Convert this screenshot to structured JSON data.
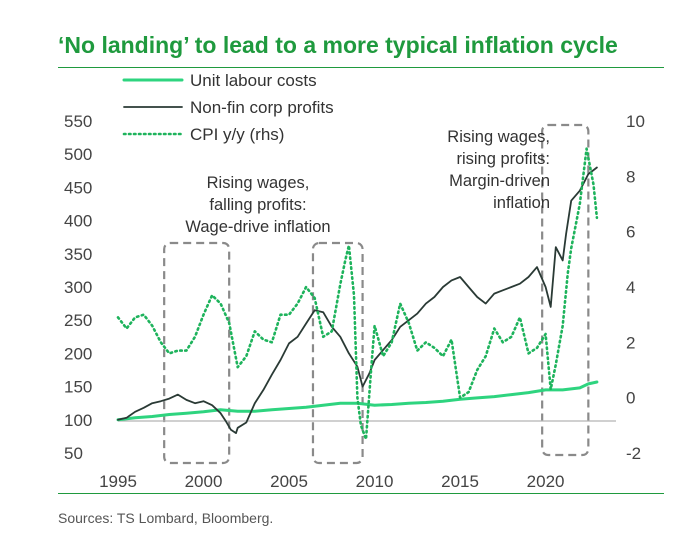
{
  "title": "‘No landing’ to lead to a more typical inflation cycle",
  "source": "Sources: TS Lombard, Bloomberg.",
  "chart_data": {
    "type": "line",
    "x_ticks": [
      "1995",
      "2000",
      "2005",
      "2010",
      "2015",
      "2020"
    ],
    "xlim": [
      1995,
      2024
    ],
    "ylim_left": [
      50,
      550
    ],
    "y_ticks_left": [
      "550",
      "500",
      "450",
      "400",
      "350",
      "300",
      "250",
      "200",
      "150",
      "100",
      "50"
    ],
    "ylim_right": [
      -2,
      10
    ],
    "y_ticks_right": [
      "10",
      "8",
      "6",
      "4",
      "2",
      "0",
      "-2"
    ],
    "legend": [
      {
        "name": "Unit labour costs",
        "color": "#2ed47f",
        "style": "solid"
      },
      {
        "name": "Non-fin corp profits",
        "color": "#2a3a35",
        "style": "solid"
      },
      {
        "name": "CPI y/y (rhs)",
        "color": "#1eb35c",
        "style": "dotted"
      }
    ],
    "annotations": [
      {
        "lines": [
          "Rising wages,",
          "falling profits:",
          "Wage-drive inflation"
        ]
      },
      {
        "lines": [
          "Rising wages,",
          "rising profits:",
          "Margin-driven",
          "inflation"
        ]
      }
    ],
    "highlight_periods": [
      [
        1997.7,
        2001.5
      ],
      [
        2006.4,
        2009.3
      ],
      [
        2019.8,
        2022.5
      ]
    ],
    "series": [
      {
        "name": "Unit labour costs",
        "axis": "left",
        "points": [
          [
            1995,
            100
          ],
          [
            1996,
            103
          ],
          [
            1997,
            105
          ],
          [
            1998,
            108
          ],
          [
            1999,
            110
          ],
          [
            2000,
            112
          ],
          [
            2001,
            115
          ],
          [
            2002,
            113
          ],
          [
            2003,
            113
          ],
          [
            2004,
            115
          ],
          [
            2005,
            117
          ],
          [
            2006,
            119
          ],
          [
            2007,
            122
          ],
          [
            2008,
            125
          ],
          [
            2009,
            125
          ],
          [
            2010,
            122
          ],
          [
            2011,
            123
          ],
          [
            2012,
            125
          ],
          [
            2013,
            126
          ],
          [
            2014,
            128
          ],
          [
            2015,
            131
          ],
          [
            2016,
            133
          ],
          [
            2017,
            135
          ],
          [
            2018,
            138
          ],
          [
            2019,
            141
          ],
          [
            2020,
            145
          ],
          [
            2021,
            145
          ],
          [
            2022,
            148
          ],
          [
            2022.5,
            154
          ],
          [
            2023,
            157
          ]
        ]
      },
      {
        "name": "Non-fin corp profits",
        "axis": "left",
        "points": [
          [
            1995,
            100
          ],
          [
            1995.5,
            103
          ],
          [
            1996,
            112
          ],
          [
            1996.5,
            118
          ],
          [
            1997,
            125
          ],
          [
            1997.5,
            128
          ],
          [
            1998,
            132
          ],
          [
            1998.5,
            138
          ],
          [
            1999,
            130
          ],
          [
            1999.5,
            125
          ],
          [
            2000,
            128
          ],
          [
            2000.5,
            122
          ],
          [
            2001,
            110
          ],
          [
            2001.3,
            98
          ],
          [
            2001.6,
            85
          ],
          [
            2001.9,
            80
          ],
          [
            2002,
            88
          ],
          [
            2002.5,
            96
          ],
          [
            2003,
            125
          ],
          [
            2003.5,
            145
          ],
          [
            2004,
            168
          ],
          [
            2004.5,
            190
          ],
          [
            2005,
            215
          ],
          [
            2005.5,
            225
          ],
          [
            2006,
            245
          ],
          [
            2006.5,
            265
          ],
          [
            2007,
            262
          ],
          [
            2007.5,
            240
          ],
          [
            2008,
            225
          ],
          [
            2008.5,
            200
          ],
          [
            2009,
            180
          ],
          [
            2009.3,
            150
          ],
          [
            2009.7,
            170
          ],
          [
            2010,
            190
          ],
          [
            2010.5,
            205
          ],
          [
            2011,
            220
          ],
          [
            2011.5,
            240
          ],
          [
            2012,
            250
          ],
          [
            2012.5,
            260
          ],
          [
            2013,
            275
          ],
          [
            2013.5,
            285
          ],
          [
            2014,
            300
          ],
          [
            2014.5,
            310
          ],
          [
            2015,
            315
          ],
          [
            2015.5,
            300
          ],
          [
            2016,
            285
          ],
          [
            2016.5,
            275
          ],
          [
            2017,
            290
          ],
          [
            2017.5,
            295
          ],
          [
            2018,
            300
          ],
          [
            2018.5,
            305
          ],
          [
            2019,
            315
          ],
          [
            2019.5,
            330
          ],
          [
            2020,
            300
          ],
          [
            2020.3,
            270
          ],
          [
            2020.6,
            360
          ],
          [
            2021,
            340
          ],
          [
            2021.2,
            380
          ],
          [
            2021.5,
            430
          ],
          [
            2022,
            445
          ],
          [
            2022.5,
            470
          ],
          [
            2023,
            480
          ]
        ]
      },
      {
        "name": "CPI y/y (rhs)",
        "axis": "right",
        "points": [
          [
            1995,
            2.9
          ],
          [
            1995.5,
            2.5
          ],
          [
            1996,
            2.9
          ],
          [
            1996.5,
            3.0
          ],
          [
            1997,
            2.6
          ],
          [
            1997.5,
            2.0
          ],
          [
            1998,
            1.6
          ],
          [
            1998.5,
            1.7
          ],
          [
            1999,
            1.7
          ],
          [
            1999.5,
            2.2
          ],
          [
            2000,
            3.0
          ],
          [
            2000.5,
            3.7
          ],
          [
            2001,
            3.4
          ],
          [
            2001.5,
            2.7
          ],
          [
            2002,
            1.1
          ],
          [
            2002.5,
            1.5
          ],
          [
            2003,
            2.4
          ],
          [
            2003.5,
            2.1
          ],
          [
            2004,
            2.0
          ],
          [
            2004.5,
            3.0
          ],
          [
            2005,
            3.0
          ],
          [
            2005.5,
            3.4
          ],
          [
            2006,
            4.0
          ],
          [
            2006.5,
            3.6
          ],
          [
            2007,
            2.2
          ],
          [
            2007.5,
            2.4
          ],
          [
            2008,
            4.1
          ],
          [
            2008.3,
            5.0
          ],
          [
            2008.5,
            5.5
          ],
          [
            2008.8,
            3.7
          ],
          [
            2009,
            0.0
          ],
          [
            2009.2,
            -1.0
          ],
          [
            2009.5,
            -1.5
          ],
          [
            2009.8,
            1.0
          ],
          [
            2010,
            2.6
          ],
          [
            2010.5,
            1.5
          ],
          [
            2011,
            2.0
          ],
          [
            2011.5,
            3.4
          ],
          [
            2012,
            2.7
          ],
          [
            2012.5,
            1.7
          ],
          [
            2013,
            2.0
          ],
          [
            2013.5,
            1.8
          ],
          [
            2014,
            1.5
          ],
          [
            2014.5,
            2.1
          ],
          [
            2015,
            0.0
          ],
          [
            2015.5,
            0.2
          ],
          [
            2016,
            1.0
          ],
          [
            2016.5,
            1.5
          ],
          [
            2017,
            2.5
          ],
          [
            2017.5,
            2.0
          ],
          [
            2018,
            2.2
          ],
          [
            2018.5,
            2.9
          ],
          [
            2019,
            1.6
          ],
          [
            2019.5,
            1.8
          ],
          [
            2020,
            2.3
          ],
          [
            2020.3,
            0.3
          ],
          [
            2020.6,
            1.2
          ],
          [
            2021,
            2.6
          ],
          [
            2021.3,
            4.5
          ],
          [
            2021.5,
            5.4
          ],
          [
            2022,
            7.0
          ],
          [
            2022.4,
            9.0
          ],
          [
            2022.8,
            7.7
          ],
          [
            2023,
            6.5
          ]
        ]
      }
    ]
  }
}
